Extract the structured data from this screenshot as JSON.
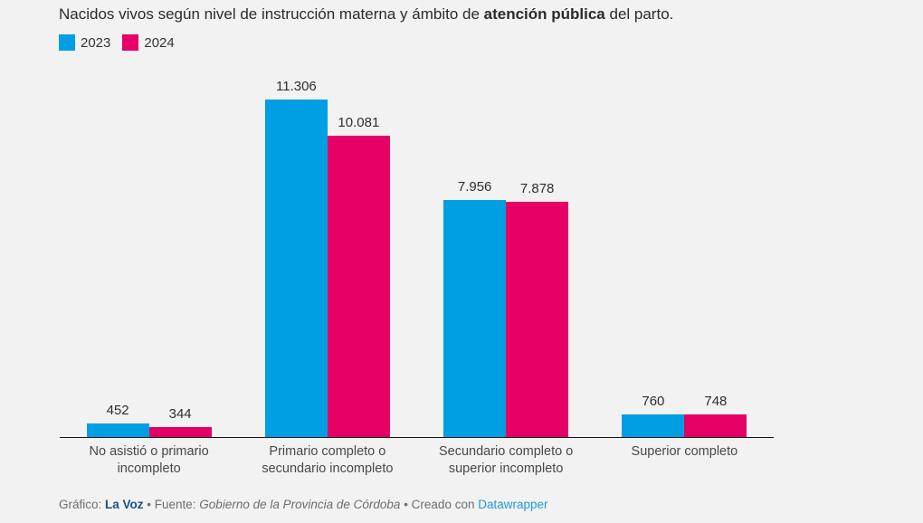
{
  "title": {
    "part1": "Nacidos vivos según nivel de instrucción materna y ámbito de ",
    "bold": "atención pública",
    "part3": " del parto."
  },
  "legend": {
    "items": [
      {
        "label": "2023",
        "color": "#009ee2"
      },
      {
        "label": "2024",
        "color": "#e60066"
      }
    ]
  },
  "chart_data": {
    "type": "bar",
    "categories": [
      "No asistió o primario incompleto",
      "Primario completo o secundario incompleto",
      "Secundario completo o superior incompleto",
      "Superior completo"
    ],
    "series": [
      {
        "name": "2023",
        "color": "#009ee2",
        "values": [
          452,
          11306,
          7956,
          760
        ],
        "labels": [
          "452",
          "11.306",
          "7.956",
          "760"
        ]
      },
      {
        "name": "2024",
        "color": "#e60066",
        "values": [
          344,
          10081,
          7878,
          748
        ],
        "labels": [
          "344",
          "10.081",
          "7.878",
          "748"
        ]
      }
    ],
    "title": "Nacidos vivos según nivel de instrucción materna y ámbito de atención pública del parto.",
    "xlabel": "",
    "ylabel": "",
    "ylim": [
      0,
      11306
    ],
    "grid": false,
    "legend_position": "top-left",
    "value_labels_visible": true
  },
  "footer": {
    "grafico_label": "Gráfico: ",
    "source": "La Voz",
    "sep1": " • ",
    "fuente_label": "Fuente: ",
    "fuente": "Gobierno de la Provincia de Córdoba",
    "sep2": " • ",
    "created_label": "Creado con ",
    "tool": "Datawrapper"
  },
  "colors": {
    "background": "#f2f2f2",
    "axis": "#111111",
    "title_text": "#2b2b2b",
    "label_text": "#484848",
    "footer_text": "#6e6e6e",
    "lavoz_link": "#1b5280",
    "datawrapper_link": "#1f9ad6"
  }
}
